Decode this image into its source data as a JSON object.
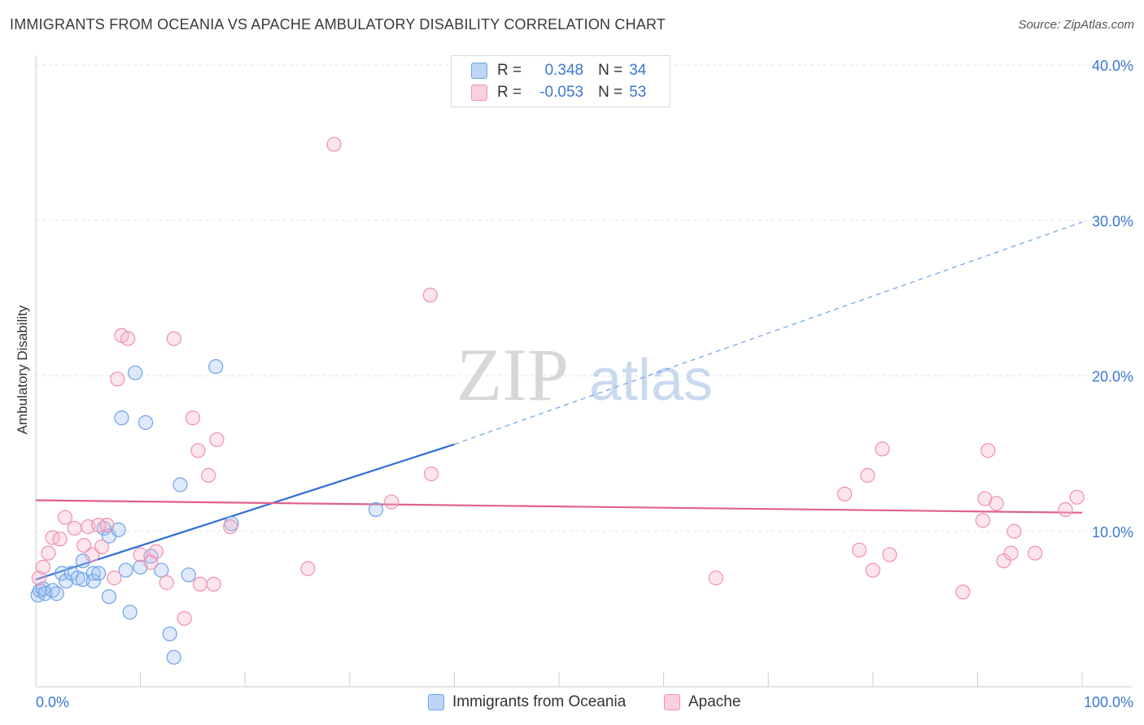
{
  "title": "IMMIGRANTS FROM OCEANIA VS APACHE AMBULATORY DISABILITY CORRELATION CHART",
  "source": "Source: ZipAtlas.com",
  "watermark": {
    "zip": "ZIP",
    "atlas": "atlas"
  },
  "legend": {
    "r_label": "R =",
    "n_label": "N =",
    "entries": [
      {
        "name": "Immigrants from Oceania",
        "r": "0.348",
        "n": "34",
        "color": "#6ea1e8"
      },
      {
        "name": "Apache",
        "r": "-0.053",
        "n": "53",
        "color": "#f08fb0"
      }
    ]
  },
  "chart_data": {
    "type": "scatter",
    "title": "IMMIGRANTS FROM OCEANIA VS APACHE AMBULATORY DISABILITY CORRELATION CHART",
    "xlabel": "",
    "ylabel": "Ambulatory Disability",
    "xlim": [
      0,
      100
    ],
    "ylim": [
      0,
      40
    ],
    "x_tick_labels": [
      "0.0%",
      "100.0%"
    ],
    "y_ticks": [
      10,
      20,
      30,
      40
    ],
    "y_tick_labels": [
      "10.0%",
      "20.0%",
      "30.0%",
      "40.0%"
    ],
    "grid": true,
    "legend_position": "top-center",
    "series": [
      {
        "name": "Immigrants from Oceania",
        "color": "#6ea1e8",
        "trend": {
          "x1": 0,
          "y1": 6.9,
          "x2": 40,
          "y2": 15.6,
          "dash_to_x": 100,
          "dash_to_y": 29.9
        },
        "points": [
          [
            0.2,
            5.9
          ],
          [
            0.4,
            6.2
          ],
          [
            0.7,
            6.3
          ],
          [
            0.9,
            6.0
          ],
          [
            1.6,
            6.2
          ],
          [
            2.0,
            6.0
          ],
          [
            2.5,
            7.3
          ],
          [
            2.9,
            6.8
          ],
          [
            3.4,
            7.3
          ],
          [
            4.0,
            7.0
          ],
          [
            4.5,
            6.9
          ],
          [
            4.5,
            8.1
          ],
          [
            5.5,
            7.3
          ],
          [
            5.5,
            6.8
          ],
          [
            6.0,
            7.3
          ],
          [
            6.5,
            10.2
          ],
          [
            7.0,
            9.7
          ],
          [
            7.0,
            5.8
          ],
          [
            7.9,
            10.1
          ],
          [
            8.2,
            17.3
          ],
          [
            8.6,
            7.5
          ],
          [
            9.0,
            4.8
          ],
          [
            9.5,
            20.2
          ],
          [
            10.0,
            7.7
          ],
          [
            10.5,
            17.0
          ],
          [
            11.0,
            8.4
          ],
          [
            12.0,
            7.5
          ],
          [
            12.8,
            3.4
          ],
          [
            13.2,
            1.9
          ],
          [
            13.8,
            13.0
          ],
          [
            14.6,
            7.2
          ],
          [
            17.2,
            20.6
          ],
          [
            18.7,
            10.5
          ],
          [
            32.5,
            11.4
          ]
        ]
      },
      {
        "name": "Apache",
        "color": "#f08fb0",
        "trend": {
          "x1": 0,
          "y1": 12.0,
          "x2": 100,
          "y2": 11.2
        },
        "points": [
          [
            0.3,
            7.0
          ],
          [
            0.7,
            7.7
          ],
          [
            1.2,
            8.6
          ],
          [
            1.6,
            9.6
          ],
          [
            2.3,
            9.5
          ],
          [
            2.8,
            10.9
          ],
          [
            3.7,
            10.2
          ],
          [
            4.6,
            9.1
          ],
          [
            5.0,
            10.3
          ],
          [
            5.4,
            8.5
          ],
          [
            6.0,
            10.4
          ],
          [
            6.3,
            9.0
          ],
          [
            6.8,
            10.4
          ],
          [
            7.5,
            7.0
          ],
          [
            7.8,
            19.8
          ],
          [
            8.2,
            22.6
          ],
          [
            8.8,
            22.4
          ],
          [
            10.0,
            8.5
          ],
          [
            11.0,
            8.0
          ],
          [
            11.5,
            8.7
          ],
          [
            12.5,
            6.7
          ],
          [
            13.2,
            22.4
          ],
          [
            14.2,
            4.4
          ],
          [
            15.0,
            17.3
          ],
          [
            15.5,
            15.2
          ],
          [
            15.7,
            6.6
          ],
          [
            16.5,
            13.6
          ],
          [
            17.0,
            6.6
          ],
          [
            17.3,
            15.9
          ],
          [
            18.6,
            10.3
          ],
          [
            26.0,
            7.6
          ],
          [
            28.5,
            34.9
          ],
          [
            34.0,
            11.9
          ],
          [
            37.7,
            25.2
          ],
          [
            37.8,
            13.7
          ],
          [
            65.0,
            7.0
          ],
          [
            77.3,
            12.4
          ],
          [
            78.7,
            8.8
          ],
          [
            79.5,
            13.6
          ],
          [
            80.0,
            7.5
          ],
          [
            80.9,
            15.3
          ],
          [
            81.6,
            8.5
          ],
          [
            90.5,
            10.7
          ],
          [
            90.7,
            12.1
          ],
          [
            88.6,
            6.1
          ],
          [
            91.0,
            15.2
          ],
          [
            91.8,
            11.8
          ],
          [
            92.5,
            8.1
          ],
          [
            93.2,
            8.6
          ],
          [
            93.5,
            10.0
          ],
          [
            95.5,
            8.6
          ],
          [
            98.4,
            11.4
          ],
          [
            99.5,
            12.2
          ]
        ]
      }
    ]
  }
}
